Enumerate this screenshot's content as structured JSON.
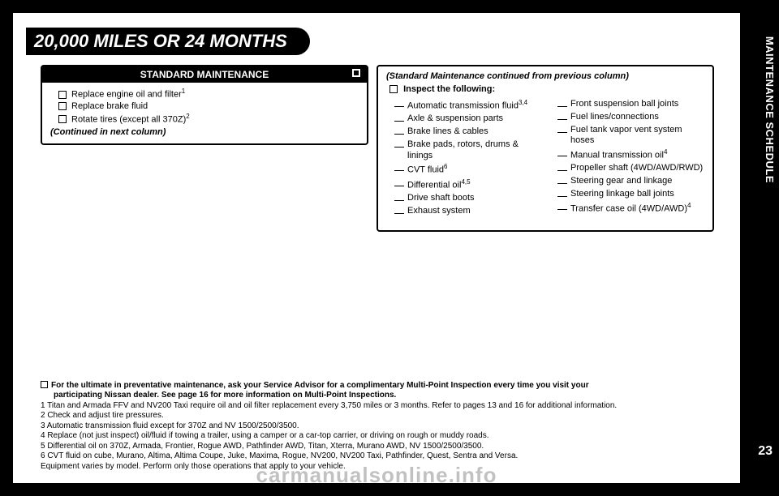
{
  "title": "20,000 MILES OR 24 MONTHS",
  "sidebar_label": "MAINTENANCE SCHEDULE",
  "page_number": "23",
  "watermark": "carmanualsonline.info",
  "left_box": {
    "header": "STANDARD MAINTENANCE",
    "items": [
      {
        "text": "Replace engine oil and filter",
        "sup": "1"
      },
      {
        "text": "Replace brake fluid",
        "sup": ""
      },
      {
        "text": "Rotate tires (except all 370Z)",
        "sup": "2"
      }
    ],
    "continued": "(Continued in next column)"
  },
  "right_box": {
    "top_note": "(Standard Maintenance continued from previous column)",
    "inspect_label": "Inspect the following:",
    "col1": [
      {
        "text": "Automatic transmission fluid",
        "sup": "3,4"
      },
      {
        "text": "Axle & suspension parts",
        "sup": ""
      },
      {
        "text": "Brake lines & cables",
        "sup": ""
      },
      {
        "text": "Brake pads, rotors, drums & linings",
        "sup": ""
      },
      {
        "text": "CVT fluid",
        "sup": "6"
      },
      {
        "text": "Differential oil",
        "sup": "4,5"
      },
      {
        "text": "Drive shaft boots",
        "sup": ""
      },
      {
        "text": "Exhaust system",
        "sup": ""
      }
    ],
    "col2": [
      {
        "text": "Front suspension ball joints",
        "sup": ""
      },
      {
        "text": "Fuel lines/connections",
        "sup": ""
      },
      {
        "text": "Fuel tank vapor vent system hoses",
        "sup": ""
      },
      {
        "text": "Manual transmission oil",
        "sup": "4"
      },
      {
        "text": "Propeller shaft (4WD/AWD/RWD)",
        "sup": ""
      },
      {
        "text": "Steering gear and linkage",
        "sup": ""
      },
      {
        "text": "Steering linkage ball joints",
        "sup": ""
      },
      {
        "text": "Transfer case oil (4WD/AWD)",
        "sup": "4"
      }
    ]
  },
  "footer": {
    "lead1": "For the ultimate in preventative maintenance, ask your Service Advisor for a complimentary Multi-Point Inspection every time you visit your",
    "lead2": "participating Nissan dealer. See page 16 for more information on Multi-Point Inspections.",
    "notes": [
      "1 Titan and Armada FFV and NV200 Taxi require oil and oil filter replacement every 3,750 miles or 3 months. Refer to pages 13 and 16 for additional information.",
      "2 Check and adjust tire pressures.",
      "3 Automatic transmission fluid except for 370Z and NV 1500/2500/3500.",
      "4 Replace (not just inspect) oil/fluid if towing a trailer, using a camper or a car-top carrier, or driving on rough or muddy roads.",
      "5 Differential oil on 370Z, Armada, Frontier, Rogue AWD, Pathfinder AWD, Titan, Xterra, Murano AWD, NV 1500/2500/3500.",
      "6 CVT fluid on cube, Murano, Altima, Altima Coupe, Juke, Maxima, Rogue, NV200, NV200 Taxi, Pathfinder, Quest, Sentra and Versa.",
      "Equipment varies by model. Perform only those operations that apply to your vehicle."
    ]
  }
}
